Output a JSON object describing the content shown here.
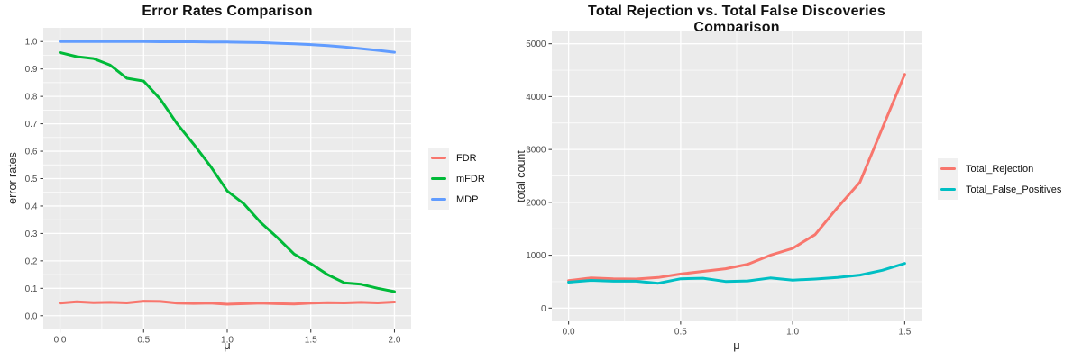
{
  "figure": {
    "background": "#FFFFFF",
    "panel_background": "#EBEBEB",
    "grid_color": "#FFFFFF",
    "tick_mark_color": "#333333",
    "tick_label_color": "#4D4D4D"
  },
  "chart_data": [
    {
      "type": "line",
      "title": "Error Rates Comparison",
      "xlabel": "μ",
      "ylabel": "error rates",
      "xlim": [
        0,
        2
      ],
      "ylim": [
        0,
        1
      ],
      "grid": true,
      "legend_position": "right",
      "xtick_values": [
        0.0,
        0.5,
        1.0,
        1.5,
        2.0
      ],
      "xtick_labels": [
        "0.0",
        "0.5",
        "1.0",
        "1.5",
        "2.0"
      ],
      "x_minor_ticks": [
        0.25,
        0.75,
        1.25,
        1.75
      ],
      "ytick_values": [
        0.0,
        0.1,
        0.2,
        0.3,
        0.4,
        0.5,
        0.6,
        0.7,
        0.8,
        0.9,
        1.0
      ],
      "ytick_labels": [
        "0.0",
        "0.1",
        "0.2",
        "0.3",
        "0.4",
        "0.5",
        "0.6",
        "0.7",
        "0.8",
        "0.9",
        "1.0"
      ],
      "y_minor_ticks": [
        0.05,
        0.15,
        0.25,
        0.35,
        0.45,
        0.55,
        0.65,
        0.75,
        0.85,
        0.95
      ],
      "x": [
        0.0,
        0.1,
        0.2,
        0.3,
        0.4,
        0.5,
        0.6,
        0.7,
        0.8,
        0.9,
        1.0,
        1.1,
        1.2,
        1.3,
        1.4,
        1.5,
        1.6,
        1.7,
        1.8,
        1.9,
        2.0
      ],
      "series": [
        {
          "name": "FDR",
          "color": "#F8766D",
          "values": [
            0.046,
            0.051,
            0.048,
            0.049,
            0.047,
            0.053,
            0.052,
            0.046,
            0.045,
            0.046,
            0.042,
            0.044,
            0.046,
            0.044,
            0.043,
            0.046,
            0.048,
            0.047,
            0.049,
            0.047,
            0.05
          ]
        },
        {
          "name": "mFDR",
          "color": "#00BA38",
          "values": [
            0.96,
            0.945,
            0.938,
            0.914,
            0.866,
            0.856,
            0.79,
            0.7,
            0.625,
            0.545,
            0.455,
            0.408,
            0.34,
            0.285,
            0.225,
            0.19,
            0.15,
            0.12,
            0.115,
            0.1,
            0.088
          ]
        },
        {
          "name": "MDP",
          "color": "#619CFF",
          "values": [
            1.0,
            1.0,
            1.0,
            1.0,
            1.0,
            1.0,
            0.999,
            0.999,
            0.999,
            0.998,
            0.998,
            0.997,
            0.996,
            0.994,
            0.992,
            0.989,
            0.985,
            0.98,
            0.974,
            0.968,
            0.961
          ]
        }
      ]
    },
    {
      "type": "line",
      "title": "Total Rejection vs. Total False Discoveries Comparison",
      "xlabel": "μ",
      "ylabel": "total count",
      "xlim": [
        0,
        1.5
      ],
      "ylim": [
        0,
        5000
      ],
      "grid": true,
      "legend_position": "right",
      "xtick_values": [
        0.0,
        0.5,
        1.0,
        1.5
      ],
      "xtick_labels": [
        "0.0",
        "0.5",
        "1.0",
        "1.5"
      ],
      "x_minor_ticks": [
        0.25,
        0.75,
        1.25
      ],
      "ytick_values": [
        0,
        1000,
        2000,
        3000,
        4000,
        5000
      ],
      "ytick_labels": [
        "0",
        "1000",
        "2000",
        "3000",
        "4000",
        "5000"
      ],
      "y_minor_ticks": [
        500,
        1500,
        2500,
        3500,
        4500
      ],
      "x": [
        0.0,
        0.1,
        0.2,
        0.3,
        0.4,
        0.5,
        0.6,
        0.7,
        0.8,
        0.9,
        1.0,
        1.1,
        1.2,
        1.3,
        1.4,
        1.5
      ],
      "series": [
        {
          "name": "Total_Rejection",
          "color": "#F8766D",
          "values": [
            520,
            570,
            555,
            550,
            580,
            645,
            695,
            745,
            830,
            1000,
            1130,
            1390,
            1900,
            2380,
            3400,
            4420
          ]
        },
        {
          "name": "Total_False_Positives",
          "color": "#00BFC4",
          "values": [
            490,
            525,
            510,
            510,
            470,
            555,
            565,
            505,
            515,
            570,
            530,
            550,
            580,
            625,
            715,
            845
          ]
        }
      ]
    }
  ]
}
